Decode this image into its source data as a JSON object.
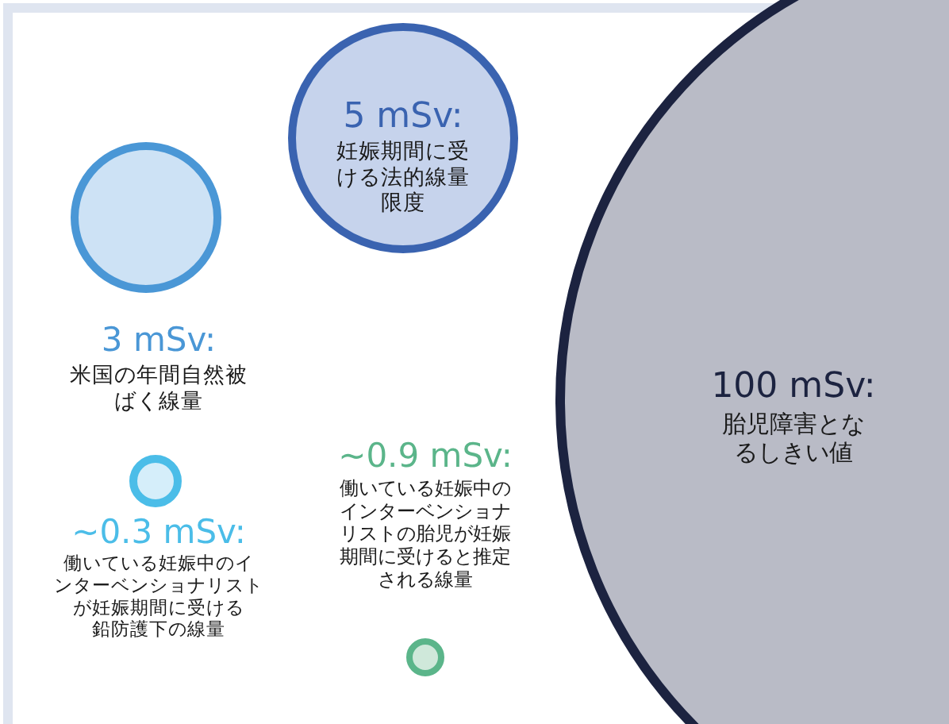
{
  "chart_data": {
    "type": "other",
    "categories": [
      "妊娠期間に受ける法的線量限度",
      "米国の年間自然被ばく線量",
      "胎児障害となるしきい値",
      "働いている妊娠中のインターベンショナリストの胎児が妊娠期間に受けると推定される線量",
      "働いている妊娠中のインターベンショナリストが妊娠期間に受ける鉛防護下の線量"
    ],
    "values": [
      5,
      3,
      100,
      0.9,
      0.3
    ],
    "value_labels": [
      "5 mSv:",
      "3 mSv:",
      "100 mSv:",
      "~0.9 mSv:",
      "~0.3 mSv:"
    ],
    "colors": [
      "#3a63b0",
      "#4a97d6",
      "#1c2340",
      "#5bb58a",
      "#4bbde8"
    ]
  }
}
